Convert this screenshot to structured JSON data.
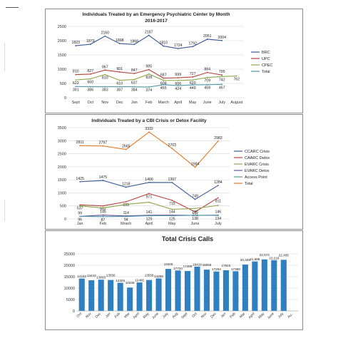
{
  "chart_data": [
    {
      "type": "line",
      "title": "Individuals Treated by an Emergency Psychiatric  Center by Month",
      "subtitle": "2016-2017",
      "categories": [
        "Sept",
        "Oct",
        "Nov",
        "Dec",
        "Jan",
        "Feb",
        "March",
        "April",
        "May",
        "June",
        "July",
        "August"
      ],
      "ylim": [
        0,
        2500
      ],
      "yticks": [
        0,
        500,
        1000,
        1500,
        2000,
        2500
      ],
      "grid": true,
      "legend_position": "right",
      "series": [
        {
          "name": "BRC",
          "color": "#3c5a97",
          "values": [
            1823,
            1873,
            2160,
            1898,
            1868,
            2187,
            1810,
            1724,
            1792,
            2051,
            2004,
            null
          ],
          "labels": [
            "1823",
            "1873",
            "2160",
            "1898",
            "1868",
            "2187",
            "1810",
            "1724",
            "1792",
            "2051",
            "2004",
            ""
          ]
        },
        {
          "name": "UPC",
          "color": "#b5433c",
          "values": [
            810,
            827,
            967,
            901,
            847,
            985,
            687,
            699,
            727,
            884,
            795,
            null
          ],
          "labels": [
            "810",
            "827",
            "967",
            "901",
            "847",
            "985",
            "687",
            "699",
            "727",
            "884",
            "795",
            ""
          ]
        },
        {
          "name": "CPEC",
          "color": "#8aa84a",
          "values": [
            622,
            660,
            810,
            610,
            637,
            828,
            608,
            606,
            620,
            709,
            742,
            762
          ],
          "labels": [
            "622",
            "660",
            "810",
            "610",
            "637",
            "828",
            "608",
            "606",
            "620",
            "709",
            "742",
            "762"
          ]
        },
        {
          "name": "Total",
          "color": "#4f9aaa",
          "values": [
            391,
            386,
            383,
            387,
            384,
            374,
            455,
            424,
            449,
            458,
            467,
            null
          ],
          "labels": [
            "391",
            "386",
            "383",
            "387",
            "384",
            "374",
            "455",
            "424",
            "449",
            "458",
            "467",
            ""
          ]
        }
      ]
    },
    {
      "type": "line",
      "title": "Individuals Treated by a CBI Crisis or Detox Facility",
      "categories": [
        "Jan",
        "Feb",
        "Mrach",
        "April",
        "May",
        "June",
        "July"
      ],
      "ylim": [
        0,
        3500
      ],
      "yticks": [
        0,
        500,
        1000,
        1500,
        2000,
        2500,
        3000,
        3500
      ],
      "grid": true,
      "legend_position": "right",
      "series": [
        {
          "name": "CCARC Crisis",
          "color": "#3c5a97",
          "values": [
            1425,
            1475,
            1218,
            1400,
            1397,
            749,
            1284
          ],
          "labels": [
            "1425",
            "1475",
            "1218",
            "1400",
            "1397",
            "749",
            "1284"
          ]
        },
        {
          "name": "CAARC Detox",
          "color": "#b5433c",
          "values": [
            537,
            502,
            659,
            971,
            715,
            271,
            811
          ],
          "labels": [
            "537",
            "502",
            "659",
            "971",
            "715",
            "271",
            "811"
          ]
        },
        {
          "name": "EVARC Crisis",
          "color": "#8aa84a",
          "values": [
            500,
            420,
            560,
            640,
            370,
            400,
            520
          ],
          "labels": [
            "",
            "",
            "",
            "",
            "",
            "",
            ""
          ]
        },
        {
          "name": "EVARC Detox",
          "color": "#6b4f96",
          "values": [
            99,
            145,
            114,
            141,
            144,
            136,
            146
          ],
          "labels": [
            "99",
            "145",
            "114",
            "141",
            "144",
            "136",
            "146"
          ]
        },
        {
          "name": "Access Point",
          "color": "#4f9aaa",
          "values": [
            96,
            87,
            94,
            125,
            125,
            138,
            134
          ],
          "labels": [
            "96",
            "87",
            "94",
            "125",
            "125",
            "138",
            "134"
          ]
        },
        {
          "name": "Total",
          "color": "#e07b2a",
          "values": [
            2811,
            2797,
            2665,
            3332,
            2703,
            1984,
            2983
          ],
          "labels": [
            "2811",
            "2797",
            "2665",
            "3332",
            "2703",
            "1984",
            "2983"
          ]
        }
      ]
    },
    {
      "type": "bar",
      "title": "Total Crisis Calls",
      "categories": [
        "Oct",
        "Nov",
        "Dec",
        "Jan",
        "Feb",
        "Mar",
        "April",
        "May",
        "June",
        "July",
        "Aug",
        "Sept",
        "Oct",
        "Nov",
        "Dec",
        "Jan",
        "Feb",
        "Mar",
        "April",
        "May",
        "June",
        "July",
        "Au.."
      ],
      "values": [
        14182,
        13443,
        13693,
        13556,
        12325,
        10238,
        12465,
        13558,
        14255,
        18405,
        17720,
        17488,
        19419,
        18093,
        17284,
        17810,
        17389,
        20328,
        21688,
        22574,
        22216,
        22405,
        null
      ],
      "labels": [
        "14182",
        "13443",
        "13693",
        "13556",
        "12325",
        "10238",
        "12465",
        "13558",
        "14255",
        "18405",
        "17720",
        "17488",
        "19419",
        "18093",
        "17284",
        "17810",
        "17389",
        "20,328",
        "21,688",
        "22,574",
        "22,216",
        "22,405",
        ""
      ],
      "ylim": [
        0,
        25000
      ],
      "yticks": [
        0,
        5000,
        10000,
        15000,
        20000,
        25000
      ],
      "grid": true,
      "bar_color": "#2f7fc1"
    }
  ]
}
